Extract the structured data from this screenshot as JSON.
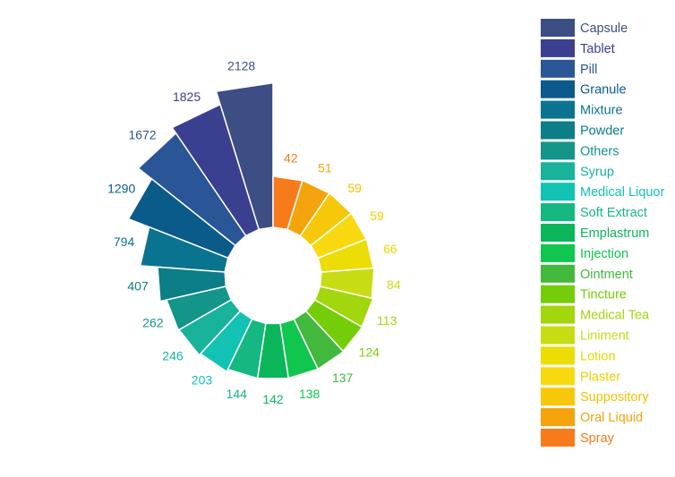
{
  "chart_data": {
    "type": "radial-bar",
    "title": "",
    "legend_position": "right",
    "categories": [
      "Capsule",
      "Tablet",
      "Pill",
      "Granule",
      "Mixture",
      "Powder",
      "Others",
      "Syrup",
      "Medical Liquor",
      "Soft Extract",
      "Emplastrum",
      "Injection",
      "Ointment",
      "Tincture",
      "Medical Tea",
      "Liniment",
      "Lotion",
      "Plaster",
      "Suppository",
      "Oral Liquid",
      "Spray"
    ],
    "values": [
      2128,
      1825,
      1672,
      1290,
      794,
      407,
      262,
      246,
      203,
      144,
      142,
      138,
      137,
      124,
      113,
      84,
      66,
      59,
      59,
      51,
      42
    ],
    "colors": [
      "#3d4e85",
      "#3a3f8f",
      "#2a5597",
      "#0a5a8a",
      "#0a7490",
      "#0b7e88",
      "#13958a",
      "#19b29a",
      "#12c2b2",
      "#14b880",
      "#0bb65a",
      "#10c64e",
      "#42b83c",
      "#75cd0a",
      "#a2d60d",
      "#c8dc14",
      "#ebdd05",
      "#f8d910",
      "#f7c80a",
      "#f5a30c",
      "#f77b1a"
    ],
    "label_colors": [
      "#3d4e85",
      "#3a3f8f",
      "#2a5597",
      "#0a5a8a",
      "#0a7490",
      "#0b7e88",
      "#13958a",
      "#19b29a",
      "#12c2b2",
      "#14b880",
      "#0bb65a",
      "#10c64e",
      "#42b83c",
      "#75cd0a",
      "#a2d60d",
      "#c8dc14",
      "#e6d800",
      "#f0d000",
      "#f5c000",
      "#f5a30c",
      "#f77b1a"
    ]
  }
}
